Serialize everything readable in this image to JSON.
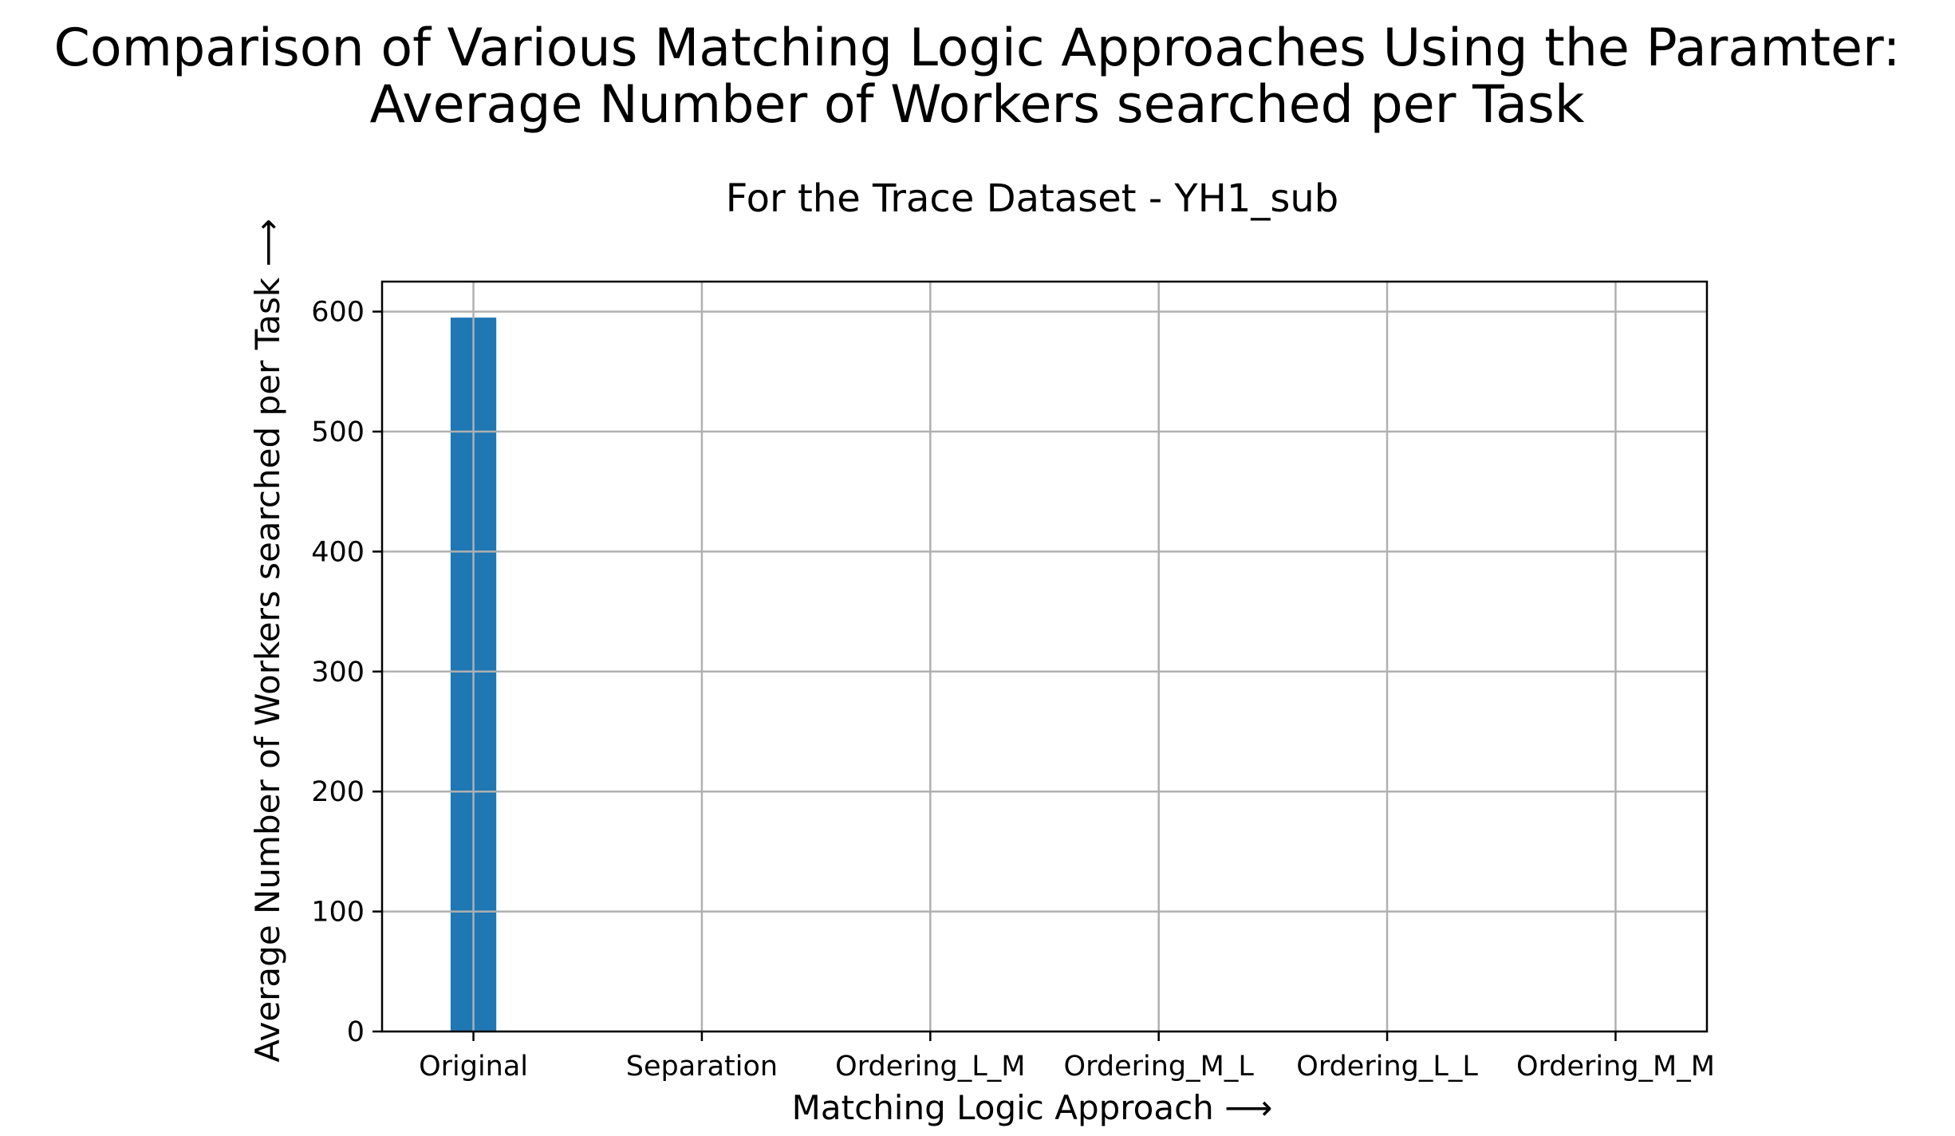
{
  "chart_data": {
    "type": "bar",
    "title_lines": [
      "Comparison of Various Matching Logic Approaches Using the Paramter:",
      "Average Number of Workers searched per Task"
    ],
    "subtitle": "For the Trace Dataset - YH1_sub",
    "xlabel": "Matching Logic Approach ⟶",
    "ylabel": "Average Number of Workers searched per Task ⟶",
    "categories": [
      "Original",
      "Separation",
      "Ordering_L_M",
      "Ordering_M_L",
      "Ordering_L_L",
      "Ordering_M_M"
    ],
    "values": [
      595,
      0,
      0,
      0,
      0,
      0
    ],
    "ylim": [
      0,
      625
    ],
    "yticks": [
      0,
      100,
      200,
      300,
      400,
      500,
      600
    ],
    "grid": true,
    "bar_color": "#1f77b4"
  }
}
